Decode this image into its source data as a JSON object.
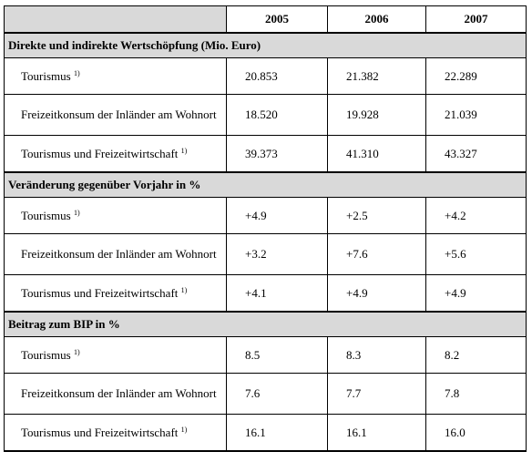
{
  "table": {
    "years": [
      "2005",
      "2006",
      "2007"
    ],
    "sections": [
      {
        "title": "Direkte und indirekte Wertschöpfung (Mio. Euro)",
        "rows": [
          {
            "label": "Tourismus",
            "footnote": "1)",
            "values": [
              "20.853",
              "21.382",
              "22.289"
            ]
          },
          {
            "label": "Freizeitkonsum der Inländer am Wohnort",
            "footnote": "",
            "values": [
              "18.520",
              "19.928",
              "21.039"
            ]
          },
          {
            "label": "Tourismus und Freizeitwirtschaft",
            "footnote": "1)",
            "values": [
              "39.373",
              "41.310",
              "43.327"
            ]
          }
        ]
      },
      {
        "title": "Veränderung gegenüber Vorjahr in %",
        "rows": [
          {
            "label": "Tourismus",
            "footnote": "1)",
            "values": [
              "+4.9",
              "+2.5",
              "+4.2"
            ]
          },
          {
            "label": "Freizeitkonsum der Inländer am Wohnort",
            "footnote": "",
            "values": [
              "+3.2",
              "+7.6",
              "+5.6"
            ]
          },
          {
            "label": "Tourismus und Freizeitwirtschaft",
            "footnote": "1)",
            "values": [
              "+4.1",
              "+4.9",
              "+4.9"
            ]
          }
        ]
      },
      {
        "title": "Beitrag zum BIP in %",
        "rows": [
          {
            "label": "Tourismus",
            "footnote": "1)",
            "values": [
              "8.5",
              "8.3",
              "8.2"
            ]
          },
          {
            "label": "Freizeitkonsum der Inländer am Wohnort",
            "footnote": "",
            "values": [
              "7.6",
              "7.7",
              "7.8"
            ]
          },
          {
            "label": "Tourismus und Freizeitwirtschaft",
            "footnote": "1)",
            "values": [
              "16.1",
              "16.1",
              "16.0"
            ]
          }
        ]
      }
    ]
  }
}
